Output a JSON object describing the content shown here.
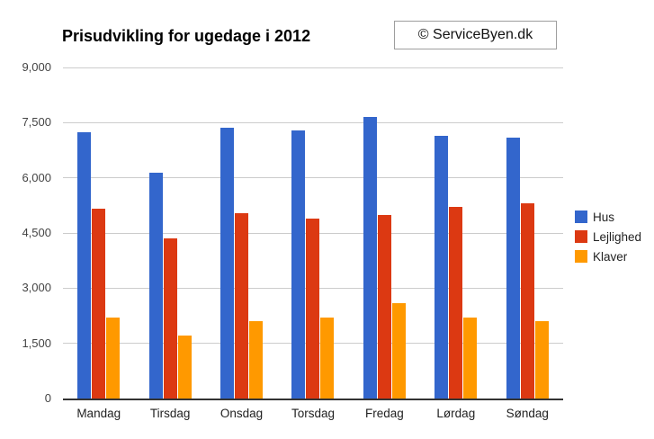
{
  "header": {
    "title": "Prisudvikling for ugedage i 2012",
    "copyright_label": "© ServiceByen.dk"
  },
  "chart_data": {
    "type": "bar",
    "title": "Prisudvikling for ugedage i 2012",
    "categories": [
      "Mandag",
      "Tirsdag",
      "Onsdag",
      "Torsdag",
      "Fredag",
      "Lørdag",
      "Søndag"
    ],
    "series": [
      {
        "name": "Hus",
        "color": "#3366CC",
        "values": [
          7250,
          6150,
          7350,
          7300,
          7650,
          7150,
          7100
        ]
      },
      {
        "name": "Lejlighed",
        "color": "#DC3912",
        "values": [
          5150,
          4350,
          5050,
          4900,
          5000,
          5200,
          5300
        ]
      },
      {
        "name": "Klaver",
        "color": "#FF9900",
        "values": [
          2200,
          1700,
          2100,
          2200,
          2600,
          2200,
          2100
        ]
      }
    ],
    "xlabel": "",
    "ylabel": "",
    "ylim": [
      0,
      9000
    ],
    "ytick_interval": 1500,
    "ytick_labels": [
      "0",
      "1,500",
      "3,000",
      "4,500",
      "6,000",
      "7,500",
      "9,000"
    ],
    "grid": true,
    "legend_position": "right",
    "colors": {
      "gridline": "#cccccc",
      "axis_line": "#333333",
      "ytick_text": "#444444",
      "xtick_text": "#222222",
      "title_text": "#000000"
    }
  }
}
